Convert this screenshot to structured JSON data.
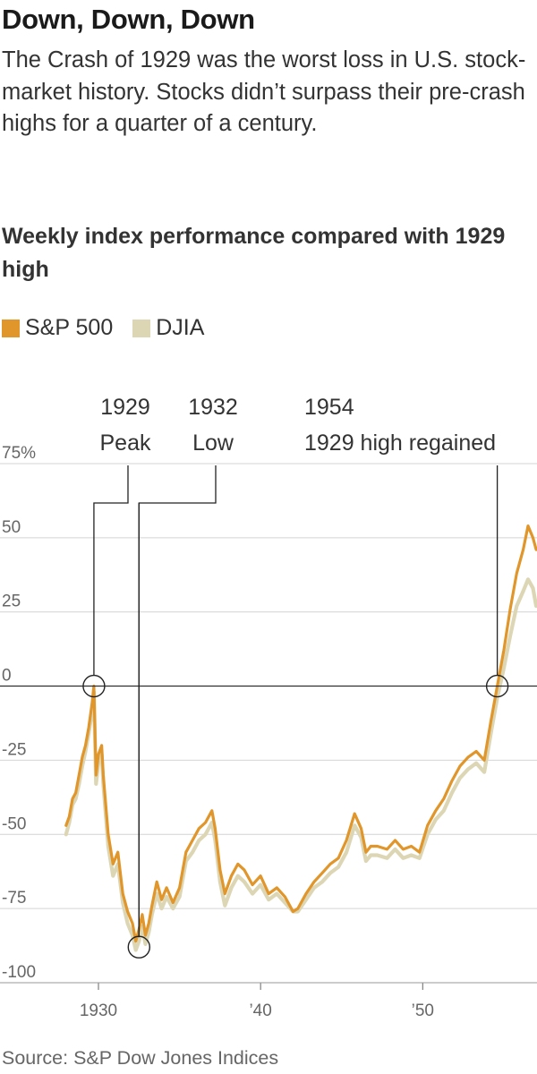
{
  "title": "Down, Down, Down",
  "subtitle": "The Crash of 1929 was the worst loss in U.S. stock-market history. Stocks didn’t surpass their pre-crash highs for a quarter of a century.",
  "chart_heading": "Weekly index performance compared with 1929 high",
  "source": "Source: S&P Dow Jones Indices",
  "legend": [
    {
      "name": "S&P 500",
      "color": "#e0962a"
    },
    {
      "name": "DJIA",
      "color": "#dcd6b4"
    }
  ],
  "chart_data": {
    "type": "line",
    "x_unit": "year",
    "y_unit": "percent change from 1929 high",
    "xlim": [
      1927.6,
      1957.0
    ],
    "ylim": [
      -100,
      75
    ],
    "grid": true,
    "y_ticks": [
      {
        "value": 75,
        "label": "75%"
      },
      {
        "value": 50,
        "label": "50"
      },
      {
        "value": 25,
        "label": "25"
      },
      {
        "value": 0,
        "label": "0"
      },
      {
        "value": -25,
        "label": "-25"
      },
      {
        "value": -50,
        "label": "-50"
      },
      {
        "value": -75,
        "label": "-75"
      },
      {
        "value": -100,
        "label": "-100"
      }
    ],
    "x_ticks": [
      {
        "value": 1930,
        "label": "1930"
      },
      {
        "value": 1940,
        "label": "’40"
      },
      {
        "value": 1950,
        "label": "’50"
      }
    ],
    "series": [
      {
        "name": "S&P 500",
        "color": "#e0962a",
        "x": [
          1928.0,
          1928.2,
          1928.4,
          1928.6,
          1928.8,
          1929.0,
          1929.2,
          1929.4,
          1929.6,
          1929.72,
          1929.85,
          1930.0,
          1930.2,
          1930.3,
          1930.6,
          1930.9,
          1931.2,
          1931.5,
          1931.8,
          1932.1,
          1932.3,
          1932.5,
          1932.7,
          1932.9,
          1933.1,
          1933.3,
          1933.6,
          1933.9,
          1934.2,
          1934.6,
          1935.0,
          1935.4,
          1935.8,
          1936.2,
          1936.6,
          1937.0,
          1937.2,
          1937.5,
          1937.8,
          1938.2,
          1938.6,
          1939.0,
          1939.5,
          1940.0,
          1940.5,
          1941.0,
          1941.5,
          1942.0,
          1942.3,
          1942.8,
          1943.3,
          1943.8,
          1944.3,
          1944.8,
          1945.3,
          1945.8,
          1946.2,
          1946.5,
          1946.8,
          1947.2,
          1947.8,
          1948.3,
          1948.8,
          1949.3,
          1949.8,
          1950.3,
          1950.8,
          1951.3,
          1951.8,
          1952.3,
          1952.8,
          1953.3,
          1953.8,
          1954.2,
          1954.6,
          1955.0,
          1955.4,
          1955.8,
          1956.2,
          1956.5,
          1956.8,
          1957.0
        ],
        "y": [
          -47,
          -44,
          -38,
          -36,
          -30,
          -24,
          -20,
          -14,
          -6,
          0,
          -30,
          -23,
          -20,
          -30,
          -50,
          -60,
          -56,
          -70,
          -76,
          -80,
          -86,
          -82,
          -77,
          -84,
          -80,
          -74,
          -66,
          -72,
          -68,
          -73,
          -68,
          -56,
          -52,
          -48,
          -46,
          -42,
          -48,
          -62,
          -70,
          -64,
          -60,
          -62,
          -67,
          -64,
          -70,
          -68,
          -71,
          -76,
          -75,
          -70,
          -66,
          -63,
          -60,
          -58,
          -52,
          -43,
          -48,
          -56,
          -54,
          -54,
          -55,
          -52,
          -55,
          -54,
          -56,
          -47,
          -42,
          -38,
          -32,
          -27,
          -24,
          -22,
          -25,
          -12,
          0,
          12,
          26,
          38,
          46,
          54,
          50,
          46
        ]
      },
      {
        "name": "DJIA",
        "color": "#dcd6b4",
        "x": [
          1928.0,
          1928.2,
          1928.4,
          1928.6,
          1928.8,
          1929.0,
          1929.2,
          1929.4,
          1929.6,
          1929.72,
          1929.85,
          1930.0,
          1930.2,
          1930.3,
          1930.6,
          1930.9,
          1931.2,
          1931.5,
          1931.8,
          1932.1,
          1932.3,
          1932.5,
          1932.7,
          1932.9,
          1933.1,
          1933.3,
          1933.6,
          1933.9,
          1934.2,
          1934.6,
          1935.0,
          1935.4,
          1935.8,
          1936.2,
          1936.6,
          1937.0,
          1937.2,
          1937.5,
          1937.8,
          1938.2,
          1938.6,
          1939.0,
          1939.5,
          1940.0,
          1940.5,
          1941.0,
          1941.5,
          1942.0,
          1942.3,
          1942.8,
          1943.3,
          1943.8,
          1944.3,
          1944.8,
          1945.3,
          1945.8,
          1946.2,
          1946.5,
          1946.8,
          1947.2,
          1947.8,
          1948.3,
          1948.8,
          1949.3,
          1949.8,
          1950.3,
          1950.8,
          1951.3,
          1951.8,
          1952.3,
          1952.8,
          1953.3,
          1953.8,
          1954.2,
          1954.6,
          1955.0,
          1955.4,
          1955.8,
          1956.2,
          1956.5,
          1956.8,
          1957.0
        ],
        "y": [
          -50,
          -46,
          -40,
          -38,
          -33,
          -27,
          -22,
          -16,
          -9,
          -2,
          -33,
          -26,
          -23,
          -33,
          -54,
          -64,
          -60,
          -73,
          -80,
          -84,
          -89,
          -86,
          -81,
          -87,
          -83,
          -77,
          -70,
          -75,
          -71,
          -75,
          -71,
          -59,
          -56,
          -52,
          -50,
          -46,
          -52,
          -66,
          -74,
          -68,
          -64,
          -66,
          -70,
          -67,
          -72,
          -70,
          -73,
          -76,
          -76,
          -72,
          -68,
          -66,
          -63,
          -61,
          -56,
          -47,
          -51,
          -59,
          -57,
          -57,
          -58,
          -55,
          -58,
          -57,
          -58,
          -50,
          -45,
          -42,
          -36,
          -31,
          -28,
          -26,
          -29,
          -16,
          -4,
          6,
          17,
          27,
          32,
          36,
          33,
          27
        ]
      }
    ],
    "annotations": [
      {
        "year": "1929",
        "text": "Peak",
        "x": 1929.72,
        "y": 0
      },
      {
        "year": "1932",
        "text": "Low",
        "x": 1932.5,
        "y": -88
      },
      {
        "year": "1954",
        "text": "1929 high regained",
        "x": 1954.6,
        "y": 0
      }
    ]
  }
}
